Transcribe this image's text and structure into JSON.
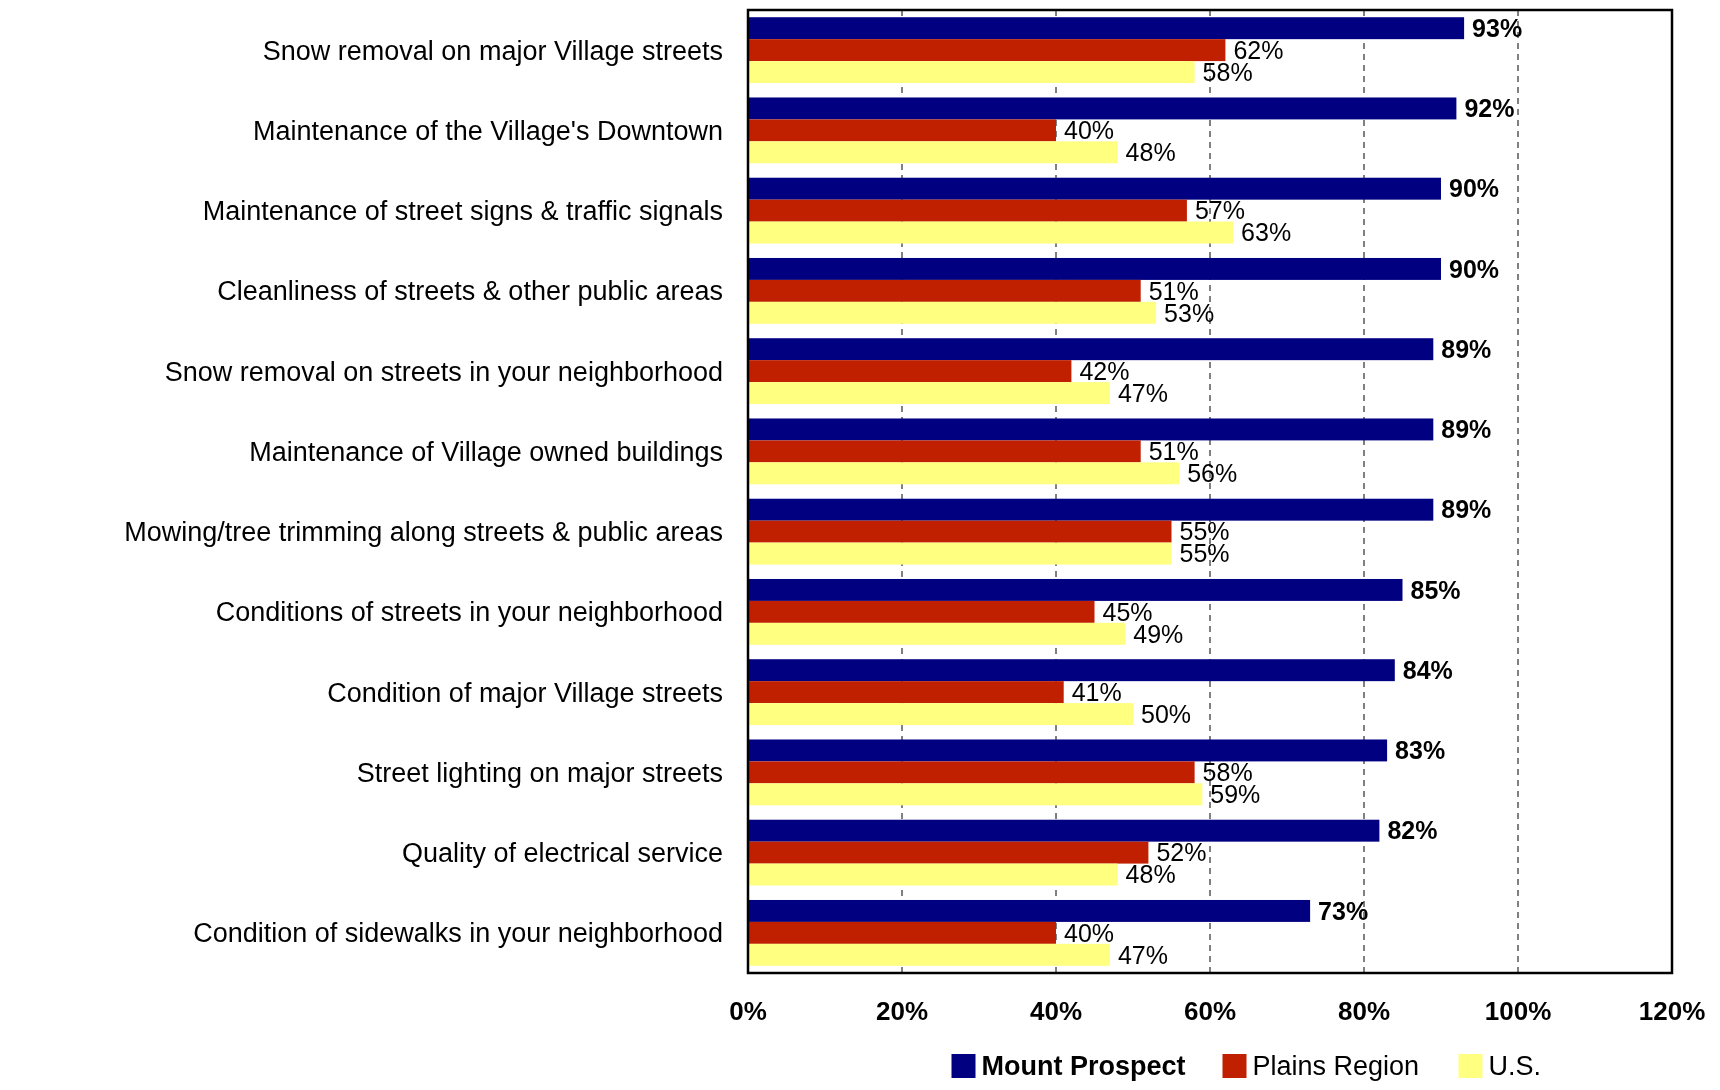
{
  "chart_data": {
    "type": "bar",
    "orientation": "horizontal",
    "categories": [
      "Snow removal on major Village streets",
      "Maintenance of the Village's Downtown",
      "Maintenance of street signs & traffic signals",
      "Cleanliness of streets & other public areas",
      "Snow removal on streets in your neighborhood",
      "Maintenance of Village owned buildings",
      "Mowing/tree trimming along streets & public areas",
      "Conditions of streets in your neighborhood",
      "Condition of major Village streets",
      "Street lighting on major streets",
      "Quality of electrical service",
      "Condition of sidewalks in your neighborhood"
    ],
    "series": [
      {
        "name": "Mount Prospect",
        "color": "#000080",
        "values": [
          93,
          92,
          90,
          90,
          89,
          89,
          89,
          85,
          84,
          83,
          82,
          73
        ],
        "value_labels": [
          "93%",
          "92%",
          "90%",
          "90%",
          "89%",
          "89%",
          "89%",
          "85%",
          "84%",
          "83%",
          "82%",
          "73%"
        ]
      },
      {
        "name": "Plains Region",
        "color": "#c02000",
        "values": [
          62,
          40,
          57,
          51,
          42,
          51,
          55,
          45,
          41,
          58,
          52,
          40
        ],
        "value_labels": [
          "62%",
          "40%",
          "57%",
          "51%",
          "42%",
          "51%",
          "55%",
          "45%",
          "41%",
          "58%",
          "52%",
          "40%"
        ]
      },
      {
        "name": "U.S.",
        "color": "#ffff80",
        "values": [
          58,
          48,
          63,
          53,
          47,
          56,
          55,
          49,
          50,
          59,
          48,
          47
        ],
        "value_labels": [
          "58%",
          "48%",
          "63%",
          "53%",
          "47%",
          "56%",
          "55%",
          "49%",
          "50%",
          "59%",
          "48%",
          "47%"
        ]
      }
    ],
    "xlim": [
      0,
      120
    ],
    "xticks": [
      {
        "value": 0,
        "label": "0%"
      },
      {
        "value": 20,
        "label": "20%"
      },
      {
        "value": 40,
        "label": "40%"
      },
      {
        "value": 60,
        "label": "60%"
      },
      {
        "value": 80,
        "label": "80%"
      },
      {
        "value": 100,
        "label": "100%"
      },
      {
        "value": 120,
        "label": "120%"
      }
    ],
    "grid": "x",
    "legend": "bottom"
  }
}
